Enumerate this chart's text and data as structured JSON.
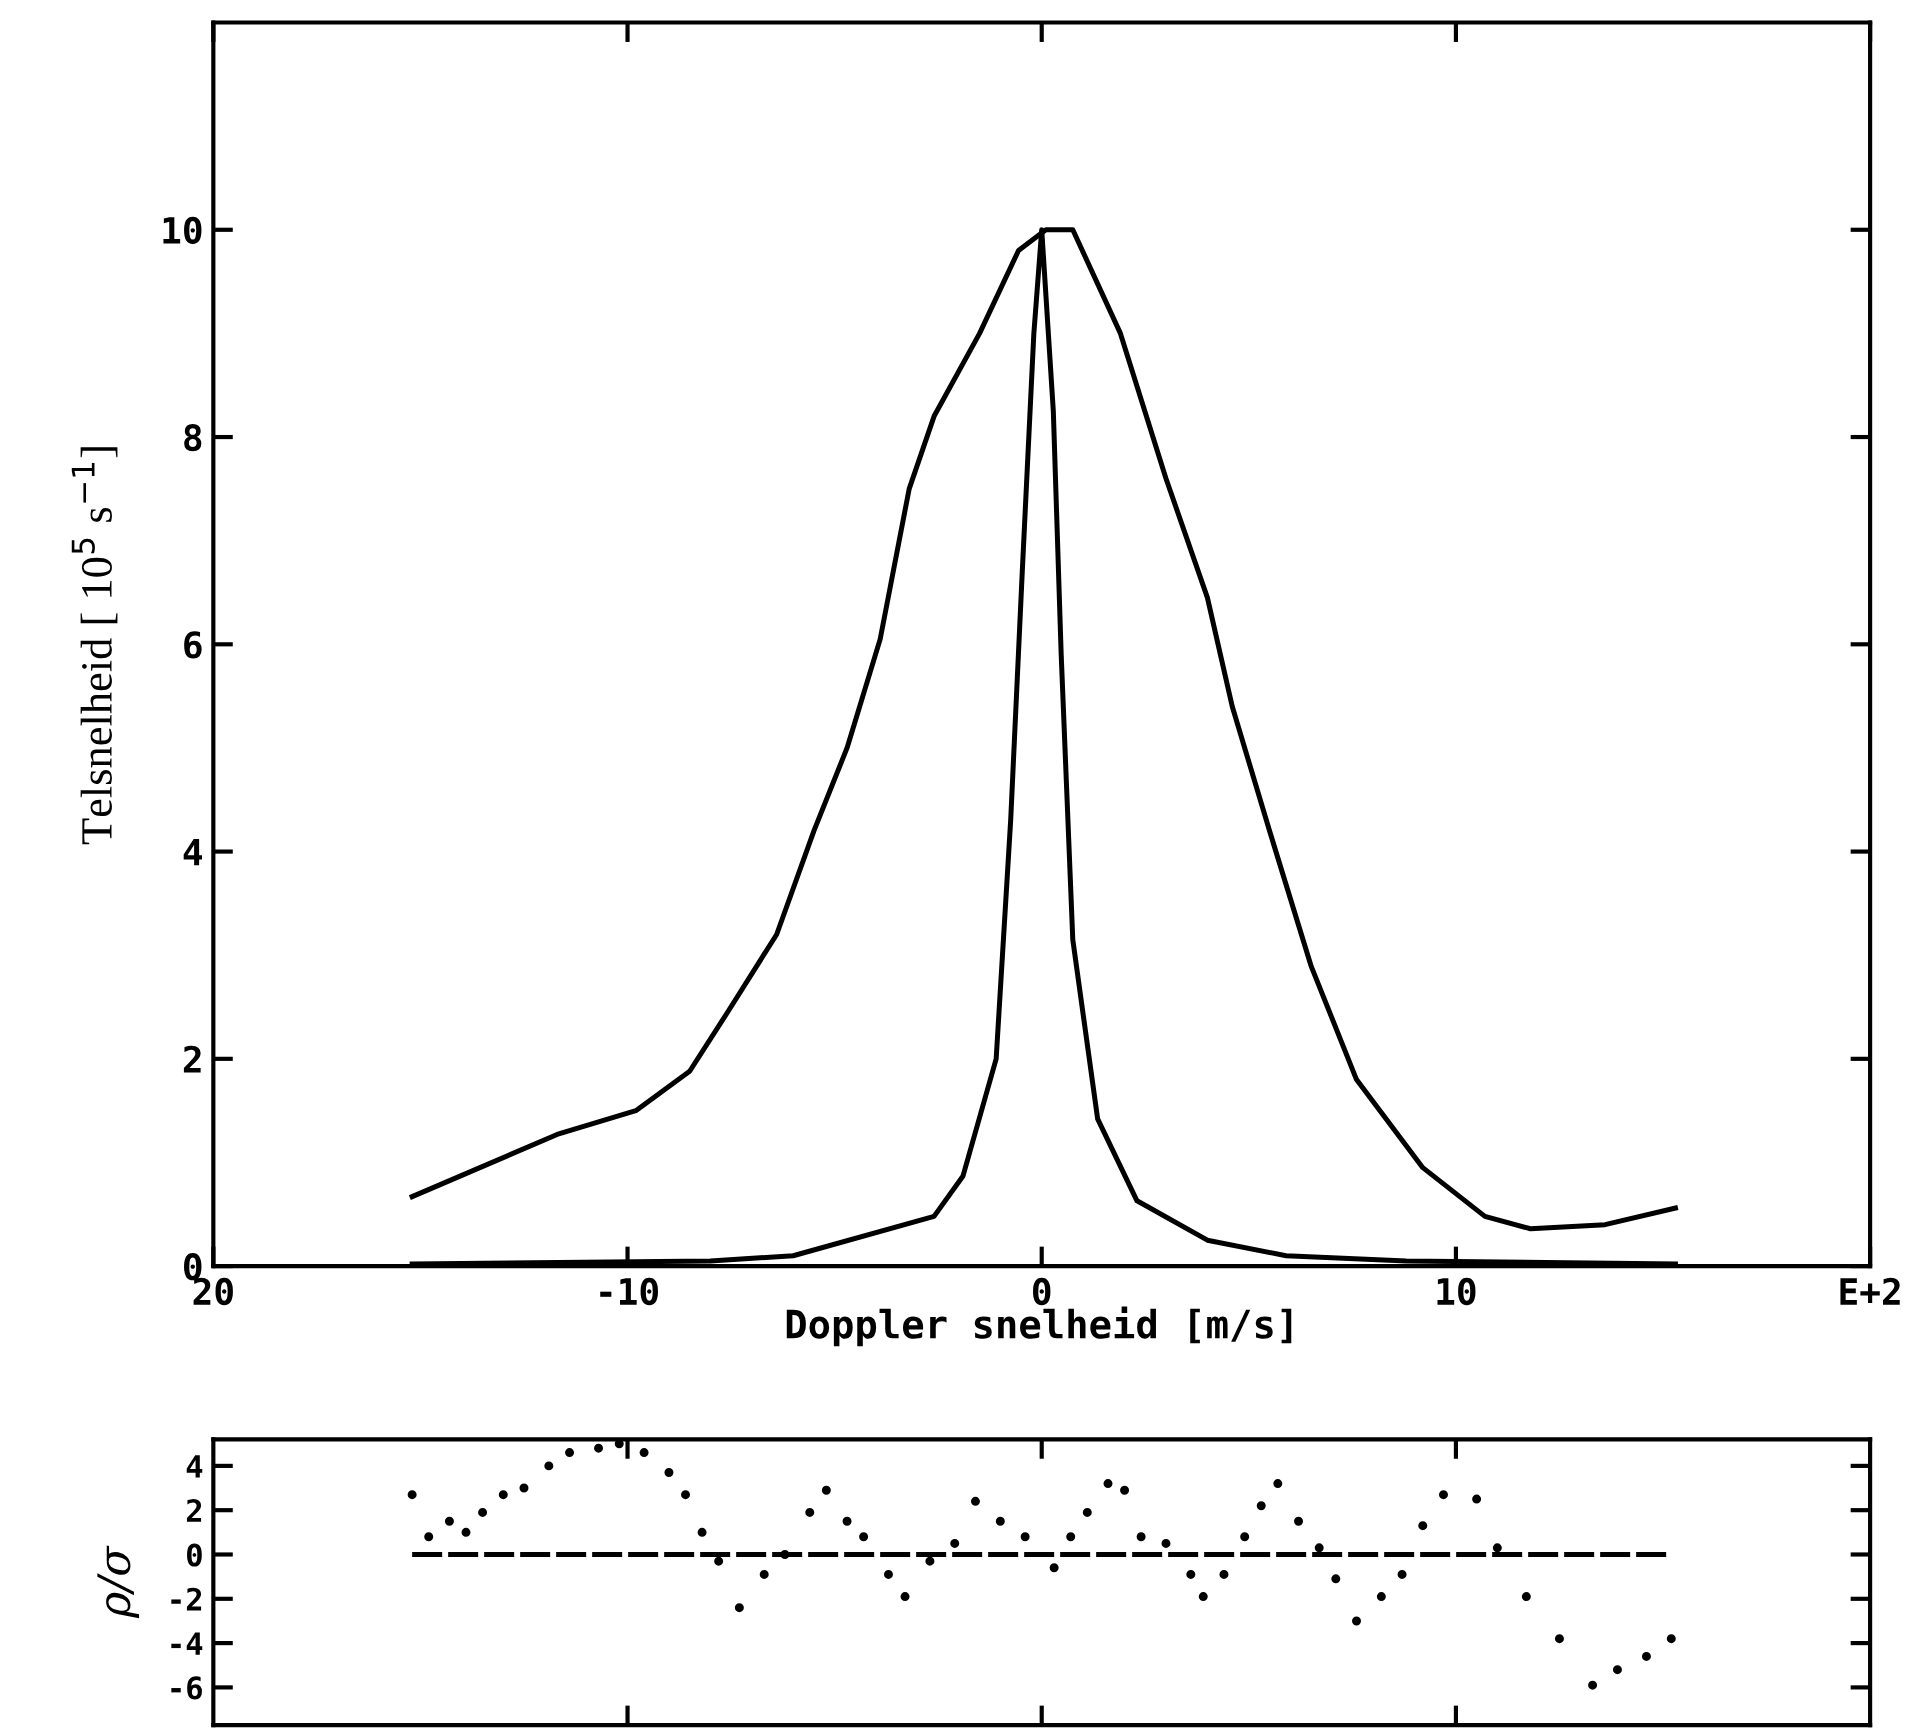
{
  "chart_data": [
    {
      "type": "line",
      "xlabel": "Doppler snelheid [m/s]",
      "ylabel": "Telsnelheid [ 10$^{5}$ s$^{−1}$]",
      "xlim": [
        -20,
        20
      ],
      "ylim": [
        0,
        12
      ],
      "xticks": [
        {
          "value": -20,
          "label": "20"
        },
        -10,
        0,
        10,
        {
          "value": 20,
          "label": "E+2"
        }
      ],
      "yticks": [
        0,
        2,
        4,
        6,
        8,
        10
      ],
      "grid": false,
      "marker": "none",
      "line_style": "solid",
      "series": [
        {
          "color": "#000000",
          "x": [
            -15.2,
            -11.7,
            -9.8,
            -8.5,
            -7.6,
            -6.4,
            -5.5,
            -4.7,
            -3.9,
            -3.2,
            -2.6,
            -1.5,
            -0.56,
            0.1,
            0.75,
            1.9,
            3.0,
            4.0,
            4.6,
            5.5,
            6.5,
            7.6,
            9.2,
            10.7,
            11.8,
            13.6,
            15.3
          ],
          "values": [
            0.67,
            1.27,
            1.5,
            1.88,
            2.44,
            3.2,
            4.2,
            5.0,
            6.05,
            7.5,
            8.2,
            9.0,
            9.8,
            10.0,
            10.0,
            9.0,
            7.6,
            6.45,
            5.4,
            4.2,
            2.9,
            1.8,
            0.95,
            0.48,
            0.36,
            0.4,
            0.56
          ]
        },
        {
          "color": "#000000",
          "x": [
            -15.2,
            -8.0,
            -6.0,
            -2.6,
            -1.9,
            -1.1,
            -0.75,
            -0.47,
            -0.19,
            0,
            0.28,
            0.47,
            0.75,
            1.35,
            2.3,
            4.0,
            5.9,
            8.8,
            15.3
          ],
          "values": [
            0.02,
            0.05,
            0.1,
            0.48,
            0.87,
            2.0,
            4.3,
            6.7,
            9.0,
            10.0,
            8.25,
            5.9,
            3.15,
            1.42,
            0.63,
            0.25,
            0.1,
            0.05,
            0.02
          ]
        }
      ]
    },
    {
      "type": "scatter",
      "ylabel": "ρ/σ",
      "xlim": [
        -20,
        20
      ],
      "ylim": [
        -7.7,
        5.2
      ],
      "xticks": [
        {
          "value": -10,
          "label": null
        },
        {
          "value": 0,
          "label": null
        },
        {
          "value": 10,
          "label": null
        }
      ],
      "yticks": [
        -6,
        -4,
        -2,
        0,
        2,
        4
      ],
      "tick_labels": "y",
      "grid": false,
      "series": [
        {
          "type": "scatter",
          "color": "#000000",
          "marker": "circle",
          "x": [
            -15.2,
            -14.8,
            -14.3,
            -13.9,
            -13.5,
            -13.0,
            -12.5,
            -11.9,
            -11.4,
            -10.7,
            -10.2,
            -9.6,
            -9.0,
            -8.6,
            -8.2,
            -7.8,
            -7.3,
            -6.7,
            -6.2,
            -5.6,
            -5.2,
            -4.7,
            -4.3,
            -3.7,
            -3.3,
            -2.7,
            -2.1,
            -1.6,
            -1.0,
            -0.4,
            0.3,
            0.7,
            1.1,
            1.6,
            2.0,
            2.4,
            3.0,
            3.6,
            3.9,
            4.4,
            4.9,
            5.3,
            5.7,
            6.2,
            6.7,
            7.1,
            7.6,
            8.2,
            8.7,
            9.2,
            9.7,
            10.5,
            11.0,
            11.7,
            12.5,
            13.3,
            13.9,
            14.6,
            15.2
          ],
          "values": [
            2.7,
            0.8,
            1.5,
            1.0,
            1.9,
            2.7,
            3.0,
            4.0,
            4.6,
            4.8,
            5.0,
            4.6,
            3.7,
            2.7,
            1.0,
            -0.3,
            -2.4,
            -0.9,
            0,
            1.9,
            2.9,
            1.5,
            0.8,
            -0.9,
            -1.9,
            -0.3,
            0.5,
            2.4,
            1.5,
            0.8,
            -0.6,
            0.8,
            1.9,
            3.2,
            2.9,
            0.8,
            0.5,
            -0.9,
            -1.9,
            -0.9,
            0.8,
            2.2,
            3.2,
            1.5,
            0.3,
            -1.1,
            -3.0,
            -1.9,
            -0.9,
            1.3,
            2.7,
            2.5,
            0.3,
            -1.9,
            -3.8,
            -5.9,
            -5.2,
            -4.6,
            -3.8
          ]
        },
        {
          "type": "line",
          "color": "#000000",
          "line_style": "dashed",
          "marker": "none",
          "x": [
            -15.2,
            15.2
          ],
          "values": [
            0,
            0
          ]
        }
      ]
    }
  ]
}
